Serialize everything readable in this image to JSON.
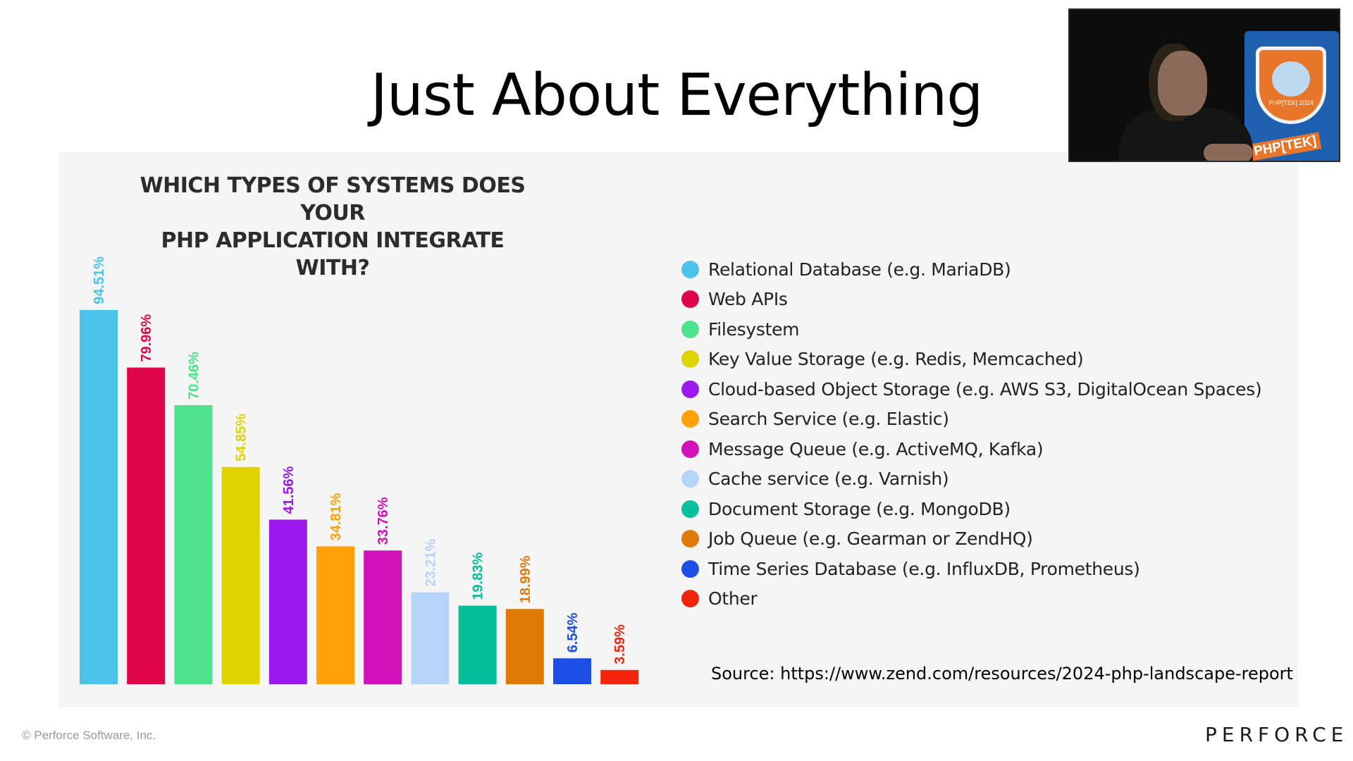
{
  "slide": {
    "title": "Just About Everything",
    "source": "Source: https://www.zend.com/resources/2024-php-landscape-report",
    "copyright": "© Perforce Software, Inc.",
    "brand": "PERFORCE"
  },
  "webcam": {
    "badge_text": "PHP[TEK]\n2024",
    "banner_text": "PHP[TEK]"
  },
  "chart_data": {
    "type": "bar",
    "title_lines": [
      "WHICH TYPES OF SYSTEMS DOES YOUR",
      "PHP APPLICATION INTEGRATE WITH?"
    ],
    "categories": [
      "Relational Database (e.g. MariaDB)",
      "Web APIs",
      "Filesystem",
      "Key Value Storage (e.g. Redis, Memcached)",
      "Cloud-based Object Storage (e.g. AWS  S3, DigitalOcean Spaces)",
      "Search Service (e.g. Elastic)",
      "Message Queue (e.g. ActiveMQ, Kafka)",
      "Cache service (e.g. Varnish)",
      "Document Storage (e.g. MongoDB)",
      "Job Queue (e.g. Gearman or ZendHQ)",
      "Time Series Database (e.g. InfluxDB, Prometheus)",
      "Other"
    ],
    "values": [
      94.51,
      79.96,
      70.46,
      54.85,
      41.56,
      34.81,
      33.76,
      23.21,
      19.83,
      18.99,
      6.54,
      3.59
    ],
    "labels": [
      "94.51%",
      "79.96%",
      "70.46%",
      "54.85%",
      "41.56%",
      "34.81%",
      "33.76%",
      "23.21%",
      "19.83%",
      "18.99%",
      "6.54%",
      "3.59%"
    ],
    "colors": [
      "#4cc3ea",
      "#e0064a",
      "#4fe28c",
      "#e0d400",
      "#9b19ee",
      "#ffa20a",
      "#d012b8",
      "#b5d4f7",
      "#07bf9a",
      "#df7a06",
      "#1d4fe6",
      "#f2250c"
    ],
    "ylim": [
      0,
      100
    ],
    "grid": false,
    "legend_position": "right"
  }
}
